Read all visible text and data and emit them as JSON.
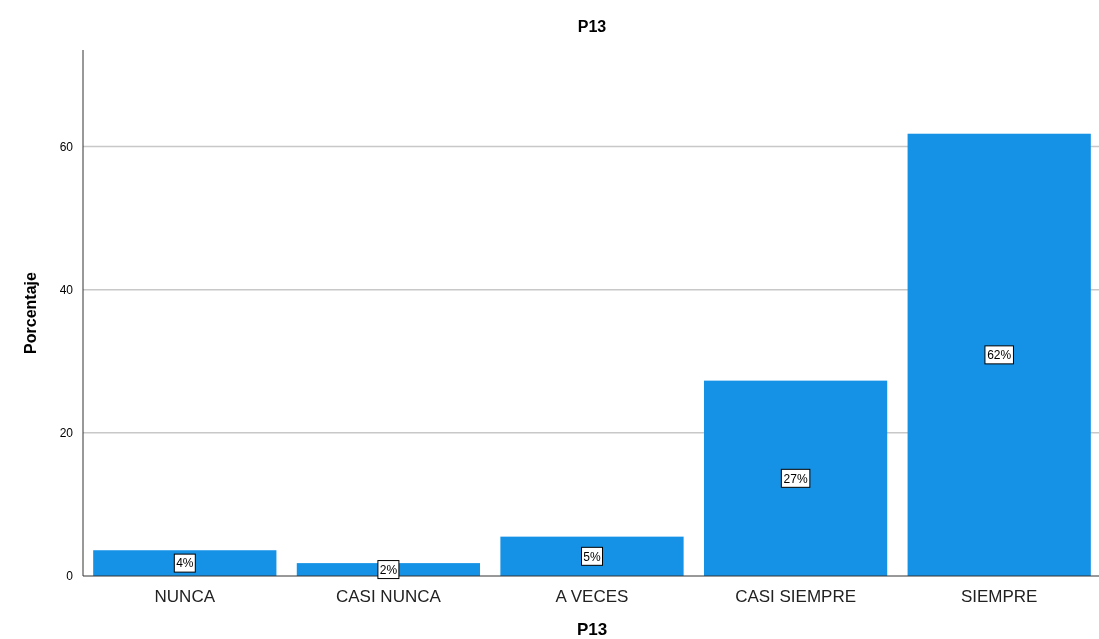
{
  "chart_data": {
    "type": "bar",
    "title": "P13",
    "xlabel": "P13",
    "ylabel": "Porcentaje",
    "categories": [
      "NUNCA",
      "CASI NUNCA",
      "A VECES",
      "CASI SIEMPRE",
      "SIEMPRE"
    ],
    "values": [
      3.6,
      1.8,
      5.5,
      27.3,
      61.8
    ],
    "value_labels": [
      "4%",
      "2%",
      "5%",
      "27%",
      "62%"
    ],
    "color": "#1592e6",
    "ylim": [
      0,
      73.5
    ],
    "yticks": [
      0,
      20,
      40,
      60
    ],
    "grid": "y"
  }
}
